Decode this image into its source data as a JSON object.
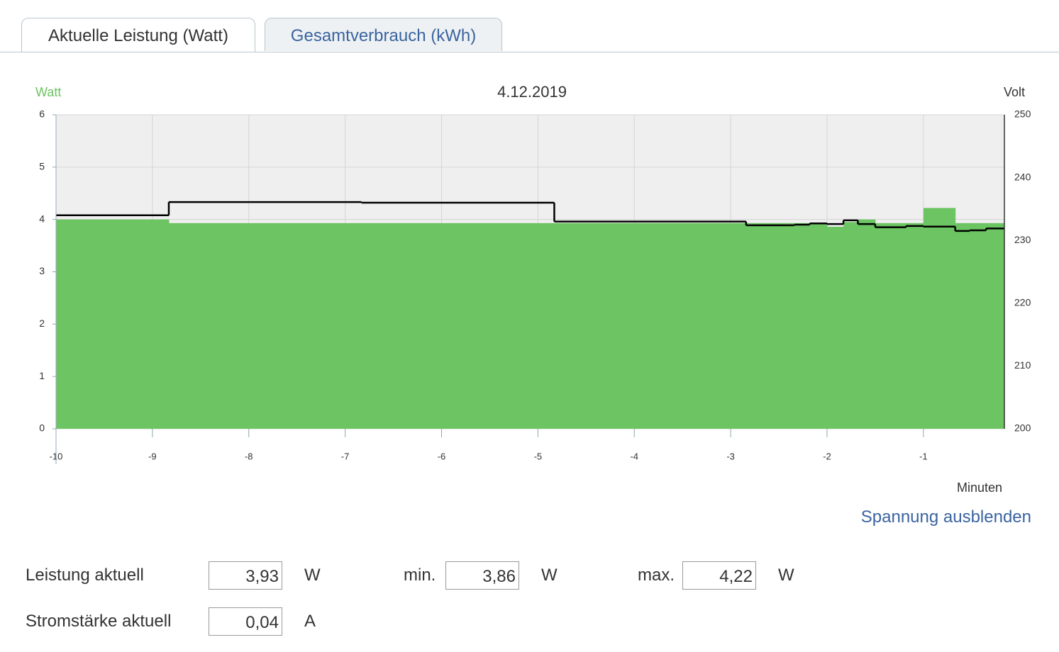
{
  "tabs": [
    "Aktuelle Leistung (Watt)",
    "Gesamtverbrauch (kWh)"
  ],
  "chart_data": {
    "type": "step-area",
    "title": "4.12.2019",
    "y_label": "Watt",
    "y2_label": "Volt",
    "x_label": "Minuten",
    "x": [
      -10,
      -8.83,
      -6.83,
      -4.83,
      -2.84,
      -2.34,
      -2.18,
      -2.0,
      -1.83,
      -1.68,
      -1.5,
      -1.18,
      -1.0,
      -0.67,
      -0.52,
      -0.35
    ],
    "series": [
      {
        "color": "#6cc462",
        "values": [
          4.0,
          3.93,
          3.93,
          3.93,
          3.93,
          3.93,
          3.93,
          3.86,
          3.95,
          4.0,
          3.93,
          3.93,
          4.22,
          3.93,
          3.93,
          3.93
        ]
      },
      {
        "color": "#000000",
        "axis": "y2",
        "values": [
          234.0,
          236.1,
          236.0,
          233.0,
          232.4,
          232.5,
          232.7,
          232.6,
          233.2,
          232.6,
          232.1,
          232.3,
          232.2,
          231.5,
          231.6,
          231.9
        ]
      }
    ],
    "xlim": [
      -10,
      -0.16
    ],
    "xticks": [
      -10,
      -9,
      -8,
      -7,
      -6,
      -5,
      -4,
      -3,
      -2,
      -1
    ],
    "ylim": [
      0,
      6
    ],
    "yticks": [
      0,
      1,
      2,
      3,
      4,
      5,
      6
    ],
    "y2lim": [
      200,
      250
    ],
    "y2ticks": [
      200,
      210,
      220,
      230,
      240,
      250
    ],
    "grid": true
  },
  "toggle_link": "Spannung ausblenden",
  "readings": [
    {
      "label": "Leistung aktuell",
      "value": "3,93",
      "unit": "W"
    },
    {
      "label": "min.",
      "value": "3,86",
      "unit": "W"
    },
    {
      "label": "max.",
      "value": "4,22",
      "unit": "W"
    },
    {
      "label": "Stromstärke aktuell",
      "value": "0,04",
      "unit": "A"
    }
  ]
}
